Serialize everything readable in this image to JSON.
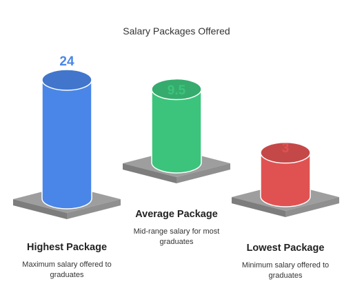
{
  "chart_data": {
    "type": "bar",
    "title": "Salary Packages Offered",
    "categories": [
      "Highest Package",
      "Average Package",
      "Lowest Package"
    ],
    "values": [
      24,
      9.5,
      3
    ],
    "descriptions": [
      "Maximum salary offered to graduates",
      "Mid-range salary for most graduates",
      "Minimum salary offered to graduates"
    ],
    "colors": [
      "#4a86e8",
      "#3cc47c",
      "#e05252"
    ],
    "value_label_colors": [
      "#4a86e8",
      "#3cc47c",
      "#e05252"
    ],
    "ylim": [
      0,
      24
    ],
    "grid": false,
    "legend": "none"
  }
}
